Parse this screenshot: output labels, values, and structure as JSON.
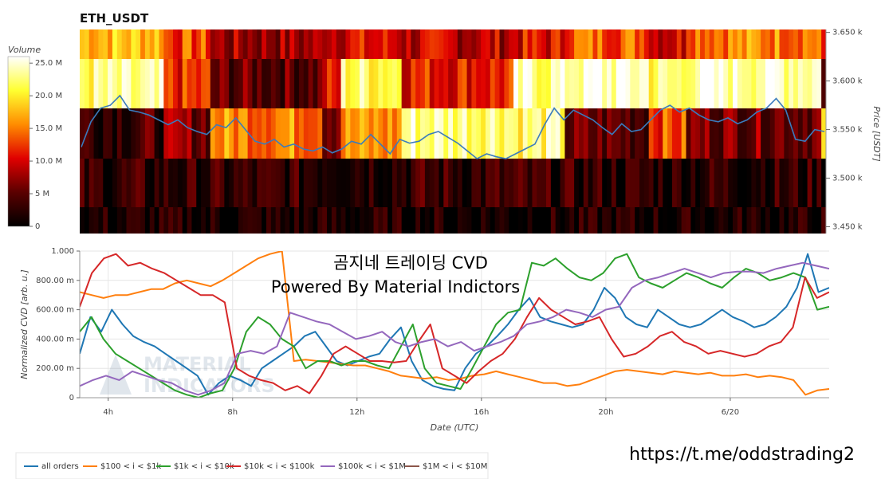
{
  "title": "ETH_USDT",
  "overlay": {
    "line1": "곰지네 트레이딩 CVD",
    "line2": "Powered By Material Indictors",
    "url": "https://t.me/oddstrading2"
  },
  "watermark": {
    "line1": "MATERIAL",
    "line2": "INDICATORS"
  },
  "colors": {
    "price_line": "#3a7bbd",
    "all_orders": "#1f77b4",
    "s100_1k": "#ff7f0e",
    "s1k_10k": "#2ca02c",
    "s10k_100k": "#d62728",
    "s100k_1m": "#9467bd",
    "s1m_10m": "#8c564b"
  },
  "chart_data": [
    {
      "type": "heatmap",
      "title": "ETH_USDT",
      "colorbar": {
        "label": "Volume",
        "range": [
          0,
          26000000
        ],
        "ticks": [
          "25.0 M",
          "20.0 M",
          "15.0 M",
          "10.0 M",
          "5 M",
          "0"
        ],
        "tick_values": [
          25000000,
          20000000,
          15000000,
          10000000,
          5000000,
          0
        ]
      },
      "y_axis": {
        "label": "Price [USDT]",
        "range": [
          3443,
          3653
        ],
        "ticks": [
          "3.650 k",
          "3.600 k",
          "3.550 k",
          "3.500 k",
          "3.450 k"
        ],
        "tick_values": [
          3650,
          3600,
          3550,
          3500,
          3450
        ]
      },
      "price_bands": [
        3623,
        3573,
        3523,
        3473
      ],
      "band_segments": [
        [
          [
            0,
            0.7
          ],
          [
            0.11,
            0.5
          ],
          [
            0.175,
            0.3
          ],
          [
            0.32,
            0.4
          ],
          [
            0.43,
            0.35
          ],
          [
            0.58,
            0.4
          ],
          [
            0.65,
            0.55
          ],
          [
            0.76,
            0.4
          ],
          [
            0.81,
            0.6
          ],
          [
            0.99,
            0.3
          ]
        ],
        [
          [
            0,
            0.85
          ],
          [
            0.11,
            0.45
          ],
          [
            0.175,
            0.2
          ],
          [
            0.32,
            0.4
          ],
          [
            0.35,
            0.85
          ],
          [
            0.43,
            0.45
          ],
          [
            0.58,
            0.9
          ],
          [
            0.65,
            0.95
          ],
          [
            0.76,
            0.85
          ],
          [
            0.81,
            0.95
          ],
          [
            0.99,
            0.25
          ]
        ],
        [
          [
            0,
            0.15
          ],
          [
            0.11,
            0.25
          ],
          [
            0.175,
            0.6
          ],
          [
            0.32,
            0.3
          ],
          [
            0.35,
            0.6
          ],
          [
            0.43,
            0.9
          ],
          [
            0.58,
            0.85
          ],
          [
            0.65,
            0.2
          ],
          [
            0.76,
            0.5
          ],
          [
            0.81,
            0.25
          ],
          [
            0.99,
            0.7
          ]
        ],
        [
          [
            0,
            0.1
          ],
          [
            0.3,
            0.12
          ],
          [
            0.6,
            0.1
          ],
          [
            0.99,
            0.12
          ]
        ],
        [
          [
            0,
            0.05
          ],
          [
            0.99,
            0.06
          ]
        ]
      ],
      "price_series": [
        3532,
        3558,
        3572,
        3575,
        3585,
        3570,
        3568,
        3565,
        3560,
        3555,
        3560,
        3552,
        3548,
        3545,
        3555,
        3552,
        3562,
        3550,
        3538,
        3535,
        3540,
        3532,
        3535,
        3530,
        3528,
        3532,
        3526,
        3530,
        3538,
        3535,
        3545,
        3535,
        3525,
        3540,
        3536,
        3538,
        3545,
        3548,
        3542,
        3536,
        3528,
        3520,
        3525,
        3522,
        3520,
        3525,
        3530,
        3535,
        3555,
        3572,
        3560,
        3570,
        3565,
        3560,
        3552,
        3545,
        3556,
        3548,
        3550,
        3560,
        3570,
        3575,
        3568,
        3572,
        3565,
        3560,
        3558,
        3562,
        3556,
        3560,
        3568,
        3572,
        3582,
        3570,
        3540,
        3538,
        3550,
        3548
      ],
      "xlim": [
        0,
        1
      ]
    },
    {
      "type": "line",
      "xlabel": "Date (UTC)",
      "ylabel": "Normalized CVD [arb. u.]",
      "ylim": [
        0,
        1
      ],
      "y_ticks": [
        "1.000",
        "800.00 m",
        "600.00 m",
        "400.00 m",
        "200.00 m",
        "0"
      ],
      "y_tick_values": [
        1,
        0.8,
        0.6,
        0.4,
        0.2,
        0
      ],
      "x_ticks": [
        "4h",
        "8h",
        "12h",
        "16h",
        "20h",
        "6/20"
      ],
      "x_tick_positions": [
        0.038,
        0.204,
        0.37,
        0.536,
        0.702,
        0.868
      ],
      "series": [
        {
          "name": "all orders",
          "key": "all_orders",
          "values": [
            0.3,
            0.55,
            0.45,
            0.6,
            0.5,
            0.42,
            0.38,
            0.35,
            0.3,
            0.25,
            0.2,
            0.15,
            0.02,
            0.1,
            0.15,
            0.12,
            0.08,
            0.2,
            0.25,
            0.3,
            0.35,
            0.42,
            0.45,
            0.35,
            0.25,
            0.22,
            0.25,
            0.28,
            0.3,
            0.4,
            0.48,
            0.25,
            0.12,
            0.08,
            0.06,
            0.05,
            0.2,
            0.3,
            0.35,
            0.42,
            0.5,
            0.6,
            0.68,
            0.55,
            0.52,
            0.5,
            0.48,
            0.5,
            0.6,
            0.75,
            0.68,
            0.55,
            0.5,
            0.48,
            0.6,
            0.55,
            0.5,
            0.48,
            0.5,
            0.55,
            0.6,
            0.55,
            0.52,
            0.48,
            0.5,
            0.55,
            0.62,
            0.75,
            0.98,
            0.72,
            0.75
          ]
        },
        {
          "name": "$100 < i < $1k",
          "key": "s100_1k",
          "values": [
            0.72,
            0.7,
            0.68,
            0.7,
            0.7,
            0.72,
            0.74,
            0.74,
            0.78,
            0.8,
            0.78,
            0.76,
            0.8,
            0.85,
            0.9,
            0.95,
            0.98,
            1.0,
            0.25,
            0.26,
            0.25,
            0.24,
            0.23,
            0.22,
            0.22,
            0.2,
            0.18,
            0.15,
            0.14,
            0.13,
            0.14,
            0.12,
            0.13,
            0.15,
            0.16,
            0.18,
            0.16,
            0.14,
            0.12,
            0.1,
            0.1,
            0.08,
            0.09,
            0.12,
            0.15,
            0.18,
            0.19,
            0.18,
            0.17,
            0.16,
            0.18,
            0.17,
            0.16,
            0.17,
            0.15,
            0.15,
            0.16,
            0.14,
            0.15,
            0.14,
            0.12,
            0.02,
            0.05,
            0.06
          ]
        },
        {
          "name": "$1k < i < $10k",
          "key": "s1k_10k",
          "values": [
            0.45,
            0.55,
            0.4,
            0.3,
            0.25,
            0.2,
            0.15,
            0.1,
            0.05,
            0.02,
            0.0,
            0.03,
            0.05,
            0.2,
            0.45,
            0.55,
            0.5,
            0.4,
            0.35,
            0.2,
            0.25,
            0.25,
            0.22,
            0.25,
            0.25,
            0.22,
            0.2,
            0.35,
            0.5,
            0.2,
            0.1,
            0.08,
            0.06,
            0.2,
            0.35,
            0.5,
            0.58,
            0.6,
            0.92,
            0.9,
            0.95,
            0.88,
            0.82,
            0.8,
            0.85,
            0.95,
            0.98,
            0.82,
            0.78,
            0.75,
            0.8,
            0.85,
            0.82,
            0.78,
            0.75,
            0.82,
            0.88,
            0.85,
            0.8,
            0.82,
            0.85,
            0.82,
            0.6,
            0.62
          ]
        },
        {
          "name": "$10k < i < $100k",
          "key": "s10k_100k",
          "values": [
            0.62,
            0.85,
            0.95,
            0.98,
            0.9,
            0.92,
            0.88,
            0.85,
            0.8,
            0.75,
            0.7,
            0.7,
            0.65,
            0.2,
            0.15,
            0.12,
            0.1,
            0.05,
            0.08,
            0.03,
            0.15,
            0.3,
            0.35,
            0.3,
            0.25,
            0.25,
            0.24,
            0.25,
            0.38,
            0.5,
            0.2,
            0.15,
            0.1,
            0.18,
            0.25,
            0.3,
            0.4,
            0.55,
            0.68,
            0.6,
            0.55,
            0.5,
            0.52,
            0.55,
            0.4,
            0.28,
            0.3,
            0.35,
            0.42,
            0.45,
            0.38,
            0.35,
            0.3,
            0.32,
            0.3,
            0.28,
            0.3,
            0.35,
            0.38,
            0.48,
            0.82,
            0.68,
            0.72
          ]
        },
        {
          "name": "$100k < i < $1M",
          "key": "s100k_1m",
          "values": [
            0.08,
            0.12,
            0.15,
            0.12,
            0.18,
            0.15,
            0.12,
            0.1,
            0.05,
            0.02,
            0.05,
            0.1,
            0.3,
            0.32,
            0.3,
            0.35,
            0.58,
            0.55,
            0.52,
            0.5,
            0.45,
            0.4,
            0.42,
            0.45,
            0.38,
            0.35,
            0.38,
            0.4,
            0.35,
            0.38,
            0.32,
            0.35,
            0.38,
            0.42,
            0.5,
            0.52,
            0.55,
            0.6,
            0.58,
            0.55,
            0.6,
            0.62,
            0.75,
            0.8,
            0.82,
            0.85,
            0.88,
            0.85,
            0.82,
            0.85,
            0.86,
            0.86,
            0.85,
            0.88,
            0.9,
            0.92,
            0.9,
            0.88
          ]
        },
        {
          "name": "$1M < i < $10M",
          "key": "s1m_10m",
          "values": [
            0.0,
            0.0,
            0.0
          ]
        }
      ]
    }
  ]
}
